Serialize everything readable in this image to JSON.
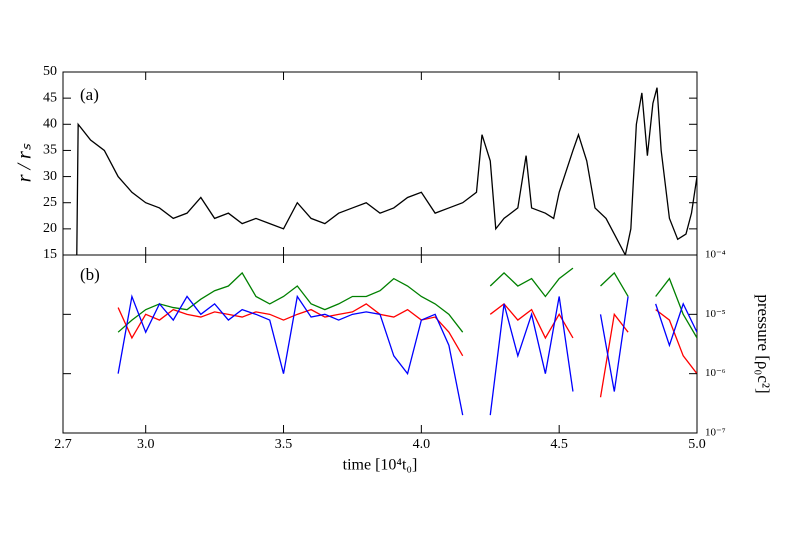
{
  "chart_data": [
    {
      "type": "line",
      "label": "(a)",
      "ylabel": "r / rₛ",
      "color": "#000000",
      "xlim": [
        2.7,
        5.0
      ],
      "ylim": [
        15,
        50
      ],
      "yticks": [
        15,
        20,
        25,
        30,
        35,
        40,
        45,
        50
      ],
      "x": [
        2.75,
        2.755,
        2.8,
        2.85,
        2.9,
        2.95,
        3.0,
        3.05,
        3.1,
        3.15,
        3.2,
        3.25,
        3.3,
        3.35,
        3.4,
        3.45,
        3.5,
        3.55,
        3.6,
        3.65,
        3.7,
        3.75,
        3.8,
        3.85,
        3.9,
        3.95,
        4.0,
        4.05,
        4.1,
        4.15,
        4.2,
        4.22,
        4.25,
        4.27,
        4.3,
        4.35,
        4.38,
        4.4,
        4.45,
        4.48,
        4.5,
        4.55,
        4.57,
        4.6,
        4.63,
        4.67,
        4.7,
        4.74,
        4.76,
        4.78,
        4.8,
        4.82,
        4.84,
        4.855,
        4.87,
        4.9,
        4.93,
        4.96,
        4.98,
        5.0
      ],
      "values": [
        15,
        40,
        37,
        35,
        30,
        27,
        25,
        24,
        22,
        23,
        26,
        22,
        23,
        21,
        22,
        21,
        20,
        25,
        22,
        21,
        23,
        24,
        25,
        23,
        24,
        26,
        27,
        23,
        24,
        25,
        27,
        38,
        33,
        20,
        22,
        24,
        34,
        24,
        23,
        22,
        27,
        35,
        38,
        33,
        24,
        22,
        19,
        15,
        20,
        40,
        46,
        34,
        44,
        47,
        35,
        22,
        18,
        19,
        23,
        30
      ]
    },
    {
      "type": "line",
      "label": "(b)",
      "ylabel": "pressure [ρ₀c²]",
      "xlabel": "time [10⁴t₀]",
      "log": true,
      "xlim": [
        2.7,
        5.0
      ],
      "xticks": [
        2.7,
        {
          "value": 3,
          "label": "3.0"
        },
        3.5,
        {
          "value": 4,
          "label": "4.0"
        },
        4.5,
        {
          "value": 5,
          "label": "5.0"
        }
      ],
      "ylim": [
        1e-07,
        0.0001
      ],
      "yticks": [
        {
          "value": 1e-07,
          "label": "10⁻⁷"
        },
        {
          "value": 1e-06,
          "label": "10⁻⁶"
        },
        {
          "value": 1e-05,
          "label": "10⁻⁵"
        },
        {
          "value": 0.0001,
          "label": "10⁻⁴"
        }
      ],
      "x": [
        2.9,
        2.95,
        3.0,
        3.05,
        3.1,
        3.15,
        3.2,
        3.25,
        3.3,
        3.35,
        3.4,
        3.45,
        3.5,
        3.55,
        3.6,
        3.65,
        3.7,
        3.75,
        3.8,
        3.85,
        3.9,
        3.95,
        4.0,
        4.05,
        4.1,
        4.15,
        4.2,
        4.25,
        4.3,
        4.35,
        4.4,
        4.45,
        4.5,
        4.55,
        4.6,
        4.65,
        4.7,
        4.75,
        4.8,
        4.85,
        4.9,
        4.95,
        5.0
      ],
      "series": [
        {
          "color": "#008000",
          "values": [
            5e-06,
            8e-06,
            1.2e-05,
            1.5e-05,
            1.3e-05,
            1.2e-05,
            1.8e-05,
            2.5e-05,
            3e-05,
            5e-05,
            2e-05,
            1.5e-05,
            2e-05,
            3e-05,
            1.5e-05,
            1.2e-05,
            1.5e-05,
            2e-05,
            2e-05,
            2.5e-05,
            4e-05,
            3e-05,
            2e-05,
            1.5e-05,
            1e-05,
            5e-06,
            null,
            3e-05,
            5e-05,
            3e-05,
            4e-05,
            2e-05,
            4e-05,
            6e-05,
            null,
            3e-05,
            5e-05,
            2e-05,
            null,
            2e-05,
            4e-05,
            1e-05,
            4e-06
          ]
        },
        {
          "color": "#ff0000",
          "values": [
            1.3e-05,
            4e-06,
            1e-05,
            8e-06,
            1.2e-05,
            1e-05,
            9e-06,
            1.1e-05,
            1e-05,
            9e-06,
            1.1e-05,
            1e-05,
            8e-06,
            1e-05,
            1.2e-05,
            9e-06,
            1e-05,
            1.1e-05,
            1.5e-05,
            1e-05,
            9e-06,
            1.2e-05,
            8e-06,
            9e-06,
            5e-06,
            2e-06,
            null,
            1e-05,
            1.5e-05,
            8e-06,
            1.2e-05,
            4e-06,
            1e-05,
            4e-06,
            null,
            4e-07,
            1e-05,
            5e-06,
            null,
            1.2e-05,
            8e-06,
            2e-06,
            1e-06
          ]
        },
        {
          "color": "#0000ff",
          "values": [
            1e-06,
            2e-05,
            5e-06,
            1.5e-05,
            8e-06,
            2e-05,
            1e-05,
            1.5e-05,
            8e-06,
            1.2e-05,
            1e-05,
            8e-06,
            1e-06,
            2e-05,
            9e-06,
            1e-05,
            8e-06,
            1e-05,
            1.1e-05,
            1e-05,
            2e-06,
            1e-06,
            8e-06,
            1e-05,
            3e-06,
            2e-07,
            null,
            2e-07,
            1.5e-05,
            2e-06,
            1e-05,
            1e-06,
            2e-05,
            5e-07,
            null,
            1e-05,
            5e-07,
            2e-05,
            null,
            1.5e-05,
            3e-06,
            1.5e-05,
            5e-06
          ]
        }
      ]
    }
  ]
}
